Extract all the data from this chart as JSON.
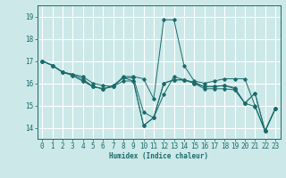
{
  "xlabel": "Humidex (Indice chaleur)",
  "xlim": [
    -0.5,
    23.5
  ],
  "ylim": [
    13.5,
    19.5
  ],
  "yticks": [
    14,
    15,
    16,
    17,
    18,
    19
  ],
  "xticks": [
    0,
    1,
    2,
    3,
    4,
    5,
    6,
    7,
    8,
    9,
    10,
    11,
    12,
    13,
    14,
    15,
    16,
    17,
    18,
    19,
    20,
    21,
    22,
    23
  ],
  "bg_color": "#cce8e8",
  "line_color": "#1a6b6b",
  "grid_color": "#ffffff",
  "lines": [
    [
      17.0,
      16.8,
      16.5,
      16.4,
      16.3,
      16.0,
      15.9,
      15.85,
      16.3,
      16.3,
      16.2,
      15.3,
      18.85,
      18.85,
      16.8,
      16.1,
      16.0,
      16.1,
      16.2,
      16.2,
      16.2,
      15.0,
      13.85,
      14.85
    ],
    [
      17.0,
      16.8,
      16.5,
      16.4,
      16.2,
      15.85,
      15.75,
      15.9,
      16.25,
      16.25,
      14.7,
      14.45,
      15.5,
      16.3,
      16.15,
      16.05,
      15.85,
      15.85,
      15.9,
      15.8,
      15.1,
      14.95,
      13.85,
      14.85
    ],
    [
      17.0,
      16.8,
      16.5,
      16.35,
      16.1,
      15.85,
      15.75,
      15.85,
      16.25,
      16.1,
      14.1,
      14.45,
      16.0,
      16.15,
      16.15,
      16.0,
      15.85,
      15.85,
      15.9,
      15.75,
      15.1,
      15.55,
      13.85,
      14.85
    ],
    [
      17.0,
      16.8,
      16.5,
      16.35,
      16.1,
      15.85,
      15.75,
      15.85,
      16.1,
      16.1,
      14.1,
      14.45,
      16.0,
      16.15,
      16.15,
      16.0,
      15.75,
      15.75,
      15.75,
      15.7,
      15.1,
      15.55,
      13.85,
      14.85
    ]
  ]
}
